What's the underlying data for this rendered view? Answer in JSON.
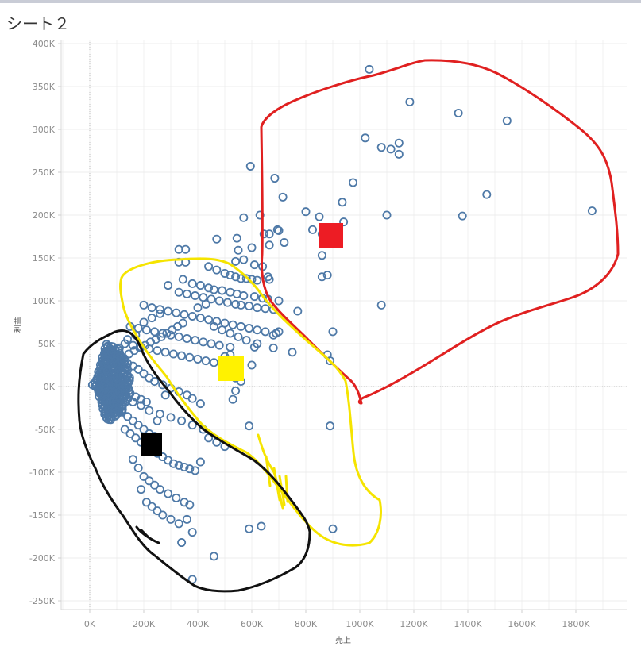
{
  "sheet": {
    "title": "シート２"
  },
  "chart_data": {
    "type": "scatter",
    "xlabel": "売上",
    "ylabel": "利益",
    "xlim": [
      -50000,
      1950000
    ],
    "ylim": [
      -260000,
      410000
    ],
    "x_ticks": [
      {
        "v": 0,
        "label": "0K"
      },
      {
        "v": 200000,
        "label": "200K"
      },
      {
        "v": 400000,
        "label": "400K"
      },
      {
        "v": 600000,
        "label": "600K"
      },
      {
        "v": 800000,
        "label": "800K"
      },
      {
        "v": 1000000,
        "label": "1000K"
      },
      {
        "v": 1200000,
        "label": "1200K"
      },
      {
        "v": 1400000,
        "label": "1400K"
      },
      {
        "v": 1600000,
        "label": "1600K"
      },
      {
        "v": 1800000,
        "label": "1800K"
      }
    ],
    "y_ticks": [
      {
        "v": 400000,
        "label": "400K"
      },
      {
        "v": 350000,
        "label": "350K"
      },
      {
        "v": 300000,
        "label": "300K"
      },
      {
        "v": 250000,
        "label": "250K"
      },
      {
        "v": 200000,
        "label": "200K"
      },
      {
        "v": 150000,
        "label": "150K"
      },
      {
        "v": 100000,
        "label": "100K"
      },
      {
        "v": 50000,
        "label": "50K"
      },
      {
        "v": 0,
        "label": "0K"
      },
      {
        "v": -50000,
        "label": "-50K"
      },
      {
        "v": -100000,
        "label": "-100K"
      },
      {
        "v": -150000,
        "label": "-150K"
      },
      {
        "v": -200000,
        "label": "-200K"
      },
      {
        "v": -250000,
        "label": "-250K"
      }
    ],
    "grid": true,
    "marker": {
      "shape": "open-circle",
      "color": "#4e79a7"
    },
    "points": [
      [
        1035000,
        370000
      ],
      [
        1185000,
        332000
      ],
      [
        1365000,
        319000
      ],
      [
        1545000,
        310000
      ],
      [
        1020000,
        290000
      ],
      [
        1080000,
        279000
      ],
      [
        1115000,
        277000
      ],
      [
        1145000,
        284000
      ],
      [
        1145000,
        271000
      ],
      [
        595000,
        257000
      ],
      [
        685000,
        243000
      ],
      [
        975000,
        238000
      ],
      [
        1470000,
        224000
      ],
      [
        715000,
        221000
      ],
      [
        935000,
        215000
      ],
      [
        1860000,
        205000
      ],
      [
        800000,
        204000
      ],
      [
        850000,
        198000
      ],
      [
        1100000,
        200000
      ],
      [
        1380000,
        199000
      ],
      [
        630000,
        200000
      ],
      [
        570000,
        197000
      ],
      [
        940000,
        192000
      ],
      [
        825000,
        183000
      ],
      [
        695000,
        183000
      ],
      [
        700000,
        182000
      ],
      [
        645000,
        178000
      ],
      [
        665000,
        178000
      ],
      [
        860000,
        178000
      ],
      [
        470000,
        172000
      ],
      [
        545000,
        173000
      ],
      [
        720000,
        168000
      ],
      [
        600000,
        162000
      ],
      [
        665000,
        165000
      ],
      [
        550000,
        159000
      ],
      [
        540000,
        146000
      ],
      [
        570000,
        148000
      ],
      [
        610000,
        142000
      ],
      [
        640000,
        140000
      ],
      [
        860000,
        153000
      ],
      [
        660000,
        128000
      ],
      [
        665000,
        125000
      ],
      [
        860000,
        128000
      ],
      [
        880000,
        130000
      ],
      [
        330000,
        160000
      ],
      [
        355000,
        160000
      ],
      [
        330000,
        145000
      ],
      [
        355000,
        145000
      ],
      [
        440000,
        140000
      ],
      [
        470000,
        136000
      ],
      [
        500000,
        132000
      ],
      [
        520000,
        130000
      ],
      [
        540000,
        128000
      ],
      [
        560000,
        126000
      ],
      [
        580000,
        126000
      ],
      [
        600000,
        125000
      ],
      [
        620000,
        124000
      ],
      [
        345000,
        125000
      ],
      [
        380000,
        120000
      ],
      [
        410000,
        118000
      ],
      [
        440000,
        115000
      ],
      [
        460000,
        113000
      ],
      [
        490000,
        112000
      ],
      [
        520000,
        110000
      ],
      [
        545000,
        108000
      ],
      [
        570000,
        106000
      ],
      [
        610000,
        105000
      ],
      [
        640000,
        103000
      ],
      [
        660000,
        102000
      ],
      [
        700000,
        100000
      ],
      [
        290000,
        118000
      ],
      [
        330000,
        110000
      ],
      [
        360000,
        108000
      ],
      [
        390000,
        106000
      ],
      [
        420000,
        104000
      ],
      [
        450000,
        102000
      ],
      [
        480000,
        100000
      ],
      [
        510000,
        98000
      ],
      [
        540000,
        96000
      ],
      [
        560000,
        95000
      ],
      [
        590000,
        94000
      ],
      [
        620000,
        92000
      ],
      [
        650000,
        91000
      ],
      [
        680000,
        90000
      ],
      [
        1080000,
        95000
      ],
      [
        770000,
        88000
      ],
      [
        200000,
        95000
      ],
      [
        230000,
        92000
      ],
      [
        260000,
        90000
      ],
      [
        290000,
        88000
      ],
      [
        320000,
        86000
      ],
      [
        350000,
        84000
      ],
      [
        380000,
        82000
      ],
      [
        410000,
        80000
      ],
      [
        440000,
        78000
      ],
      [
        470000,
        76000
      ],
      [
        500000,
        74000
      ],
      [
        530000,
        72000
      ],
      [
        560000,
        70000
      ],
      [
        590000,
        68000
      ],
      [
        620000,
        66000
      ],
      [
        650000,
        64000
      ],
      [
        690000,
        62000
      ],
      [
        900000,
        64000
      ],
      [
        700000,
        64000
      ],
      [
        680000,
        60000
      ],
      [
        150000,
        70000
      ],
      [
        180000,
        68000
      ],
      [
        210000,
        66000
      ],
      [
        240000,
        64000
      ],
      [
        270000,
        62000
      ],
      [
        300000,
        60000
      ],
      [
        330000,
        58000
      ],
      [
        360000,
        56000
      ],
      [
        390000,
        54000
      ],
      [
        420000,
        52000
      ],
      [
        450000,
        50000
      ],
      [
        480000,
        48000
      ],
      [
        520000,
        46000
      ],
      [
        610000,
        46000
      ],
      [
        680000,
        45000
      ],
      [
        750000,
        40000
      ],
      [
        880000,
        37000
      ],
      [
        890000,
        30000
      ],
      [
        520000,
        37000
      ],
      [
        500000,
        35000
      ],
      [
        130000,
        50000
      ],
      [
        160000,
        48000
      ],
      [
        190000,
        46000
      ],
      [
        220000,
        44000
      ],
      [
        250000,
        42000
      ],
      [
        280000,
        40000
      ],
      [
        310000,
        38000
      ],
      [
        340000,
        36000
      ],
      [
        370000,
        34000
      ],
      [
        400000,
        32000
      ],
      [
        430000,
        30000
      ],
      [
        460000,
        28000
      ],
      [
        490000,
        25000
      ],
      [
        510000,
        20000
      ],
      [
        530000,
        15000
      ],
      [
        540000,
        10000
      ],
      [
        560000,
        6000
      ],
      [
        100000,
        35000
      ],
      [
        120000,
        30000
      ],
      [
        140000,
        27000
      ],
      [
        160000,
        24000
      ],
      [
        180000,
        20000
      ],
      [
        200000,
        15000
      ],
      [
        220000,
        10000
      ],
      [
        240000,
        6000
      ],
      [
        270000,
        2000
      ],
      [
        300000,
        -2000
      ],
      [
        330000,
        -6000
      ],
      [
        360000,
        -10000
      ],
      [
        380000,
        -14000
      ],
      [
        410000,
        -20000
      ],
      [
        600000,
        25000
      ],
      [
        540000,
        -5000
      ],
      [
        530000,
        -15000
      ],
      [
        60000,
        20000
      ],
      [
        80000,
        15000
      ],
      [
        100000,
        10000
      ],
      [
        110000,
        5000
      ],
      [
        120000,
        0
      ],
      [
        130000,
        -5000
      ],
      [
        150000,
        -8000
      ],
      [
        170000,
        -12000
      ],
      [
        190000,
        -15000
      ],
      [
        210000,
        -18000
      ],
      [
        40000,
        10000
      ],
      [
        50000,
        5000
      ],
      [
        60000,
        0
      ],
      [
        70000,
        -5000
      ],
      [
        80000,
        -10000
      ],
      [
        90000,
        -15000
      ],
      [
        100000,
        -20000
      ],
      [
        110000,
        -25000
      ],
      [
        120000,
        -30000
      ],
      [
        140000,
        -35000
      ],
      [
        160000,
        -40000
      ],
      [
        180000,
        -45000
      ],
      [
        200000,
        -50000
      ],
      [
        220000,
        -55000
      ],
      [
        240000,
        -58000
      ],
      [
        20000,
        0
      ],
      [
        30000,
        -3000
      ],
      [
        10000,
        2000
      ],
      [
        25000,
        8000
      ],
      [
        45000,
        14000
      ],
      [
        65000,
        18000
      ],
      [
        85000,
        22000
      ],
      [
        105000,
        26000
      ],
      [
        125000,
        32000
      ],
      [
        145000,
        38000
      ],
      [
        165000,
        42000
      ],
      [
        185000,
        45000
      ],
      [
        205000,
        48000
      ],
      [
        225000,
        52000
      ],
      [
        245000,
        55000
      ],
      [
        265000,
        58000
      ],
      [
        285000,
        62000
      ],
      [
        305000,
        66000
      ],
      [
        325000,
        70000
      ],
      [
        345000,
        74000
      ],
      [
        130000,
        -50000
      ],
      [
        150000,
        -55000
      ],
      [
        170000,
        -60000
      ],
      [
        190000,
        -65000
      ],
      [
        210000,
        -70000
      ],
      [
        230000,
        -74000
      ],
      [
        250000,
        -78000
      ],
      [
        270000,
        -82000
      ],
      [
        290000,
        -86000
      ],
      [
        310000,
        -90000
      ],
      [
        330000,
        -92000
      ],
      [
        350000,
        -94000
      ],
      [
        370000,
        -96000
      ],
      [
        390000,
        -98000
      ],
      [
        410000,
        -88000
      ],
      [
        160000,
        -85000
      ],
      [
        180000,
        -95000
      ],
      [
        200000,
        -105000
      ],
      [
        220000,
        -110000
      ],
      [
        240000,
        -115000
      ],
      [
        260000,
        -120000
      ],
      [
        290000,
        -125000
      ],
      [
        320000,
        -130000
      ],
      [
        350000,
        -135000
      ],
      [
        370000,
        -138000
      ],
      [
        190000,
        -120000
      ],
      [
        210000,
        -135000
      ],
      [
        230000,
        -140000
      ],
      [
        250000,
        -145000
      ],
      [
        270000,
        -150000
      ],
      [
        300000,
        -155000
      ],
      [
        330000,
        -160000
      ],
      [
        360000,
        -155000
      ],
      [
        380000,
        -170000
      ],
      [
        340000,
        -182000
      ],
      [
        460000,
        -198000
      ],
      [
        380000,
        -225000
      ],
      [
        590000,
        -166000
      ],
      [
        635000,
        -163000
      ],
      [
        900000,
        -166000
      ],
      [
        890000,
        -46000
      ],
      [
        590000,
        -46000
      ],
      [
        440000,
        -60000
      ],
      [
        470000,
        -65000
      ],
      [
        500000,
        -70000
      ],
      [
        160000,
        -18000
      ],
      [
        190000,
        -22000
      ],
      [
        220000,
        -28000
      ],
      [
        260000,
        -32000
      ],
      [
        300000,
        -36000
      ],
      [
        340000,
        -40000
      ],
      [
        380000,
        -45000
      ],
      [
        420000,
        -50000
      ],
      [
        80000,
        40000
      ],
      [
        110000,
        45000
      ],
      [
        140000,
        55000
      ],
      [
        170000,
        60000
      ],
      [
        200000,
        75000
      ],
      [
        230000,
        80000
      ],
      [
        260000,
        85000
      ],
      [
        400000,
        92000
      ],
      [
        430000,
        96000
      ],
      [
        460000,
        70000
      ],
      [
        490000,
        66000
      ],
      [
        520000,
        62000
      ],
      [
        550000,
        58000
      ],
      [
        580000,
        54000
      ],
      [
        620000,
        50000
      ],
      [
        250000,
        -40000
      ],
      [
        280000,
        -10000
      ]
    ]
  }
}
